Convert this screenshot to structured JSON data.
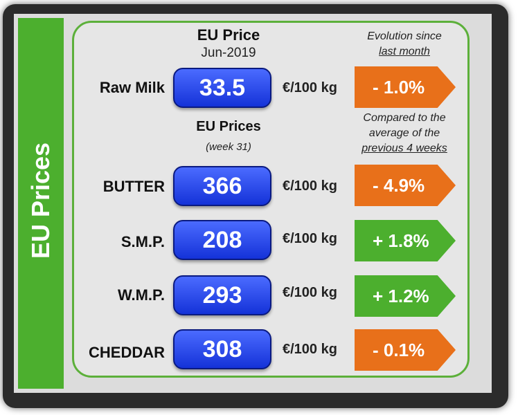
{
  "sidebar": {
    "title": "EU Prices"
  },
  "header": {
    "eu_price": "EU Price",
    "date": "Jun-2019",
    "evolution_line1": "Evolution since",
    "evolution_line2": "last month"
  },
  "raw_milk": {
    "label": "Raw Milk",
    "value": "33.5",
    "unit": "€/100 kg",
    "change": "- 1.0%",
    "color": "#e8701a"
  },
  "section": {
    "title": "EU Prices",
    "week": "(week 31)",
    "compare_line1": "Compared to the",
    "compare_line2": "average of the",
    "compare_line3": "previous 4 weeks"
  },
  "products": [
    {
      "label": "BUTTER",
      "value": "366",
      "unit": "€/100 kg",
      "change": "- 4.9%",
      "color": "#e8701a"
    },
    {
      "label": "S.M.P.",
      "value": "208",
      "unit": "€/100 kg",
      "change": "+ 1.8%",
      "color": "#4caf2e"
    },
    {
      "label": "W.M.P.",
      "value": "293",
      "unit": "€/100 kg",
      "change": "+ 1.2%",
      "color": "#4caf2e"
    },
    {
      "label": "CHEDDAR",
      "value": "308",
      "unit": "€/100 kg",
      "change": "- 0.1%",
      "color": "#e8701a"
    }
  ]
}
